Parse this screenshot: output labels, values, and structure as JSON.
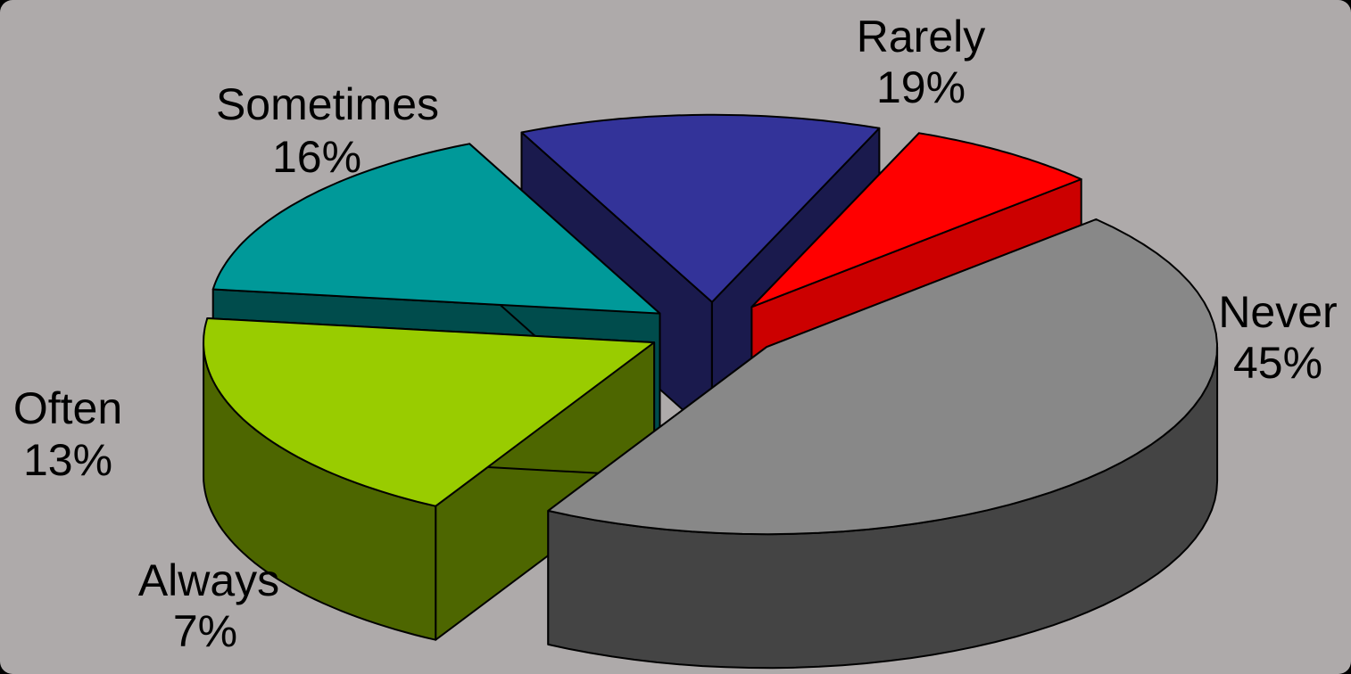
{
  "chart_data": {
    "type": "pie",
    "style": "3d-exploded",
    "background": "#aeaaaa",
    "slices": [
      {
        "label": "Never",
        "value": 45,
        "value_label": "45%",
        "top_color": "#888888",
        "side_color": "#444444"
      },
      {
        "label": "Rarely",
        "value": 19,
        "value_label": "19%",
        "top_color": "#99cc00",
        "side_color": "#4d6600"
      },
      {
        "label": "Sometimes",
        "value": 16,
        "value_label": "16%",
        "top_color": "#009999",
        "side_color": "#004c4c"
      },
      {
        "label": "Often",
        "value": 13,
        "value_label": "13%",
        "top_color": "#333399",
        "side_color": "#1a1a4d"
      },
      {
        "label": "Always",
        "value": 7,
        "value_label": "7%",
        "top_color": "#ff0000",
        "side_color": "#cc0000"
      }
    ]
  }
}
